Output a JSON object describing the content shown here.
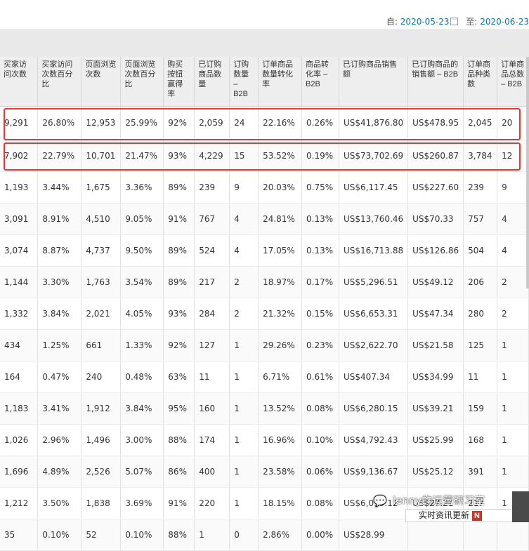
{
  "date_range": {
    "from_label": "自:",
    "from_date": "2020-05-23",
    "to_label": "至:",
    "to_date": "2020-06-23"
  },
  "table": {
    "headers": [
      "买家访问次数",
      "买家访问次数百分比",
      "页面浏览次数",
      "页面浏览次数百分比",
      "购买按钮赢得率",
      "已订购商品数量",
      "订购数量 – B2B",
      "订单商品数量转化率",
      "商品转化率 – B2B",
      "已订购商品销售额",
      "已订购商品的销售额 – B2B",
      "订单商品种类数",
      "订单商品总数 – B2B"
    ],
    "rows": [
      [
        "9,291",
        "26.80%",
        "12,953",
        "25.99%",
        "92%",
        "2,059",
        "24",
        "22.16%",
        "0.26%",
        "US$41,876.80",
        "US$478.95",
        "2,045",
        "20"
      ],
      [
        "7,902",
        "22.79%",
        "10,701",
        "21.47%",
        "93%",
        "4,229",
        "15",
        "53.52%",
        "0.19%",
        "US$73,702.69",
        "US$260.87",
        "3,784",
        "12"
      ],
      [
        "1,193",
        "3.44%",
        "1,675",
        "3.36%",
        "89%",
        "239",
        "9",
        "20.03%",
        "0.75%",
        "US$6,117.45",
        "US$227.60",
        "239",
        "9"
      ],
      [
        "3,091",
        "8.91%",
        "4,510",
        "9.05%",
        "91%",
        "767",
        "4",
        "24.81%",
        "0.13%",
        "US$13,760.46",
        "US$70.33",
        "757",
        "4"
      ],
      [
        "3,074",
        "8.87%",
        "4,737",
        "9.50%",
        "89%",
        "524",
        "4",
        "17.05%",
        "0.13%",
        "US$16,713.88",
        "US$126.86",
        "504",
        "4"
      ],
      [
        "1,144",
        "3.30%",
        "1,763",
        "3.54%",
        "89%",
        "217",
        "2",
        "18.97%",
        "0.17%",
        "US$5,296.51",
        "US$49.12",
        "206",
        "2"
      ],
      [
        "1,332",
        "3.84%",
        "2,021",
        "4.05%",
        "93%",
        "284",
        "2",
        "21.32%",
        "0.15%",
        "US$6,653.31",
        "US$47.34",
        "280",
        "2"
      ],
      [
        "434",
        "1.25%",
        "661",
        "1.33%",
        "92%",
        "127",
        "1",
        "29.26%",
        "0.23%",
        "US$2,622.70",
        "US$21.58",
        "125",
        "1"
      ],
      [
        "164",
        "0.47%",
        "240",
        "0.48%",
        "63%",
        "11",
        "1",
        "6.71%",
        "0.61%",
        "US$407.34",
        "US$34.99",
        "11",
        "1"
      ],
      [
        "1,183",
        "3.41%",
        "1,912",
        "3.84%",
        "95%",
        "160",
        "1",
        "13.52%",
        "0.08%",
        "US$6,280.15",
        "US$39.21",
        "159",
        "1"
      ],
      [
        "1,026",
        "2.96%",
        "1,496",
        "3.00%",
        "88%",
        "174",
        "1",
        "16.96%",
        "0.10%",
        "US$4,792.43",
        "US$25.99",
        "168",
        "1"
      ],
      [
        "1,696",
        "4.89%",
        "2,526",
        "5.07%",
        "86%",
        "400",
        "1",
        "23.58%",
        "0.06%",
        "US$9,136.67",
        "US$25.12",
        "391",
        "1"
      ],
      [
        "1,212",
        "3.50%",
        "1,838",
        "3.69%",
        "91%",
        "220",
        "1",
        "18.15%",
        "0.08%",
        "US$6,019.12",
        "US$27.21",
        "217",
        "1"
      ],
      [
        "35",
        "0.10%",
        "52",
        "0.10%",
        "88%",
        "1",
        "0",
        "2.86%",
        "0.00%",
        "US$28.99",
        "",
        "",
        ""
      ]
    ]
  },
  "watermark": {
    "logo_icon": "wechat-icon",
    "name": "lenny的运营研习室",
    "tag": "实时资讯更新",
    "tag_badge": "N"
  },
  "colors": {
    "highlight": "#e03b3b",
    "date_link": "#0a74a8"
  }
}
